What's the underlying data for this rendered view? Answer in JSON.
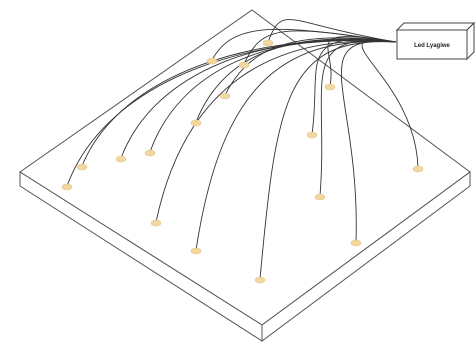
{
  "diagram": {
    "device_box": {
      "label": "Led Lyagiwe"
    },
    "colors": {
      "panel_stroke": "#555555",
      "fiber_stroke": "#333333",
      "light_dot": "#f2d7a0",
      "light_dot_edge": "#e4c586",
      "box_fill": "#ffffff",
      "box_stroke": "#444444"
    },
    "light_point_count": 17
  }
}
